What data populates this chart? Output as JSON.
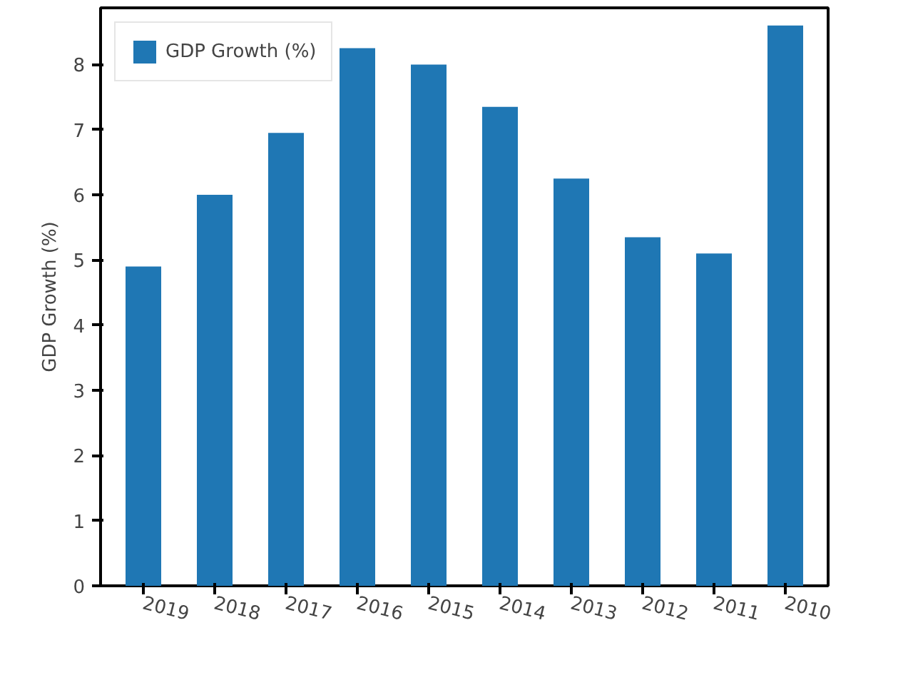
{
  "chart_data": {
    "type": "bar",
    "ylabel": "GDP Growth (%)",
    "categories": [
      "2019",
      "2018",
      "2017",
      "2016",
      "2015",
      "2014",
      "2013",
      "2012",
      "2011",
      "2010"
    ],
    "series": [
      {
        "name": "GDP Growth (%)",
        "color": "#1f77b4",
        "values": [
          4.9,
          6.0,
          6.95,
          8.25,
          8.0,
          7.35,
          6.25,
          5.35,
          5.1,
          8.6
        ]
      }
    ],
    "ylim": [
      0,
      8.87
    ],
    "yticks": [
      0,
      1,
      2,
      3,
      4,
      5,
      6,
      7,
      8
    ],
    "grid": false,
    "legend": "top left"
  }
}
